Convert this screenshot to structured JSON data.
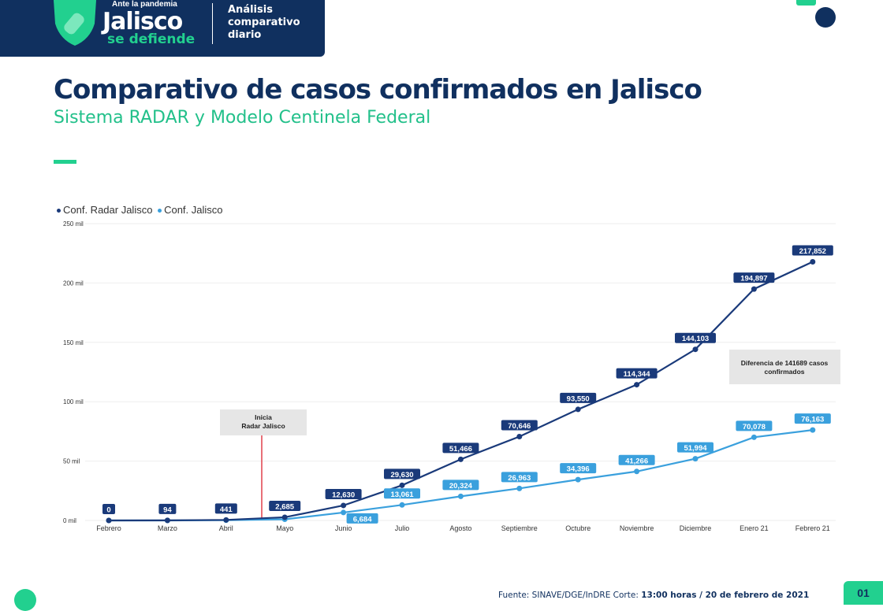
{
  "header": {
    "tagline": "Ante la pandemia",
    "brand": "Jalisco",
    "brand_sub": "se defiende",
    "section": [
      "Análisis",
      "comparativo",
      "diario"
    ]
  },
  "title": "Comparativo de casos confirmados en Jalisco",
  "subtitle": "Sistema RADAR y Modelo Centinela Federal",
  "colors": {
    "navy": "#10305f",
    "green": "#22d08f",
    "series_dark": "#1a3a7a",
    "series_light": "#3aa0dd",
    "marker_line": "#e0404a"
  },
  "chart_data": {
    "type": "line",
    "categories": [
      "Febrero",
      "Marzo",
      "Abril",
      "Mayo",
      "Junio",
      "Julio",
      "Agosto",
      "Septiembre",
      "Octubre",
      "Noviembre",
      "Diciembre",
      "Enero 21",
      "Febrero 21"
    ],
    "ylim": [
      0,
      250000
    ],
    "yticks": [
      {
        "v": 0,
        "label": "0 mil"
      },
      {
        "v": 50000,
        "label": "50 mil"
      },
      {
        "v": 100000,
        "label": "100 mil"
      },
      {
        "v": 150000,
        "label": "150 mil"
      },
      {
        "v": 200000,
        "label": "200 mil"
      },
      {
        "v": 250000,
        "label": "250 mil"
      }
    ],
    "grid": true,
    "legend": "top-left",
    "series": [
      {
        "name": "Conf. Radar Jalisco",
        "values": [
          0,
          94,
          441,
          2685,
          12630,
          29630,
          51466,
          70646,
          93550,
          114344,
          144103,
          194897,
          217852
        ],
        "labels": [
          "0",
          "94",
          "441",
          "2,685",
          "12,630",
          "29,630",
          "51,466",
          "70,646",
          "93,550",
          "114,344",
          "144,103",
          "194,897",
          "217,852"
        ]
      },
      {
        "name": "Conf. Jalisco",
        "values": [
          0,
          0,
          200,
          1000,
          6684,
          13061,
          20324,
          26963,
          34396,
          41266,
          51994,
          70078,
          76163
        ],
        "labels": [
          null,
          null,
          null,
          null,
          "6,684",
          "13,061",
          "20,324",
          "26,963",
          "34,396",
          "41,266",
          "51,994",
          "70,078",
          "76,163"
        ]
      }
    ],
    "annotations": [
      {
        "text": [
          "Inicia",
          "Radar Jalisco"
        ],
        "between": [
          "Abril",
          "Mayo"
        ]
      },
      {
        "text": [
          "Diferencia de 141689 casos",
          "confirmados"
        ]
      }
    ]
  },
  "footer": {
    "source": "Fuente: SINAVE/DGE/InDRE Corte: ",
    "cut": "13:00 horas / 20 de febrero de 2021",
    "page": "01"
  }
}
